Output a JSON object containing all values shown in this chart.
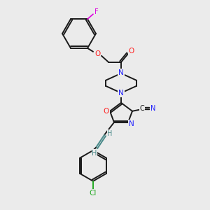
{
  "background_color": "#ebebeb",
  "bond_color": "#1a1a1a",
  "atom_colors": {
    "N": "#2020ff",
    "O": "#ff2020",
    "F": "#dd00dd",
    "Cl": "#22aa22",
    "C": "#1a1a1a",
    "H": "#4a8a8a"
  },
  "figsize": [
    3.0,
    3.0
  ],
  "dpi": 100
}
